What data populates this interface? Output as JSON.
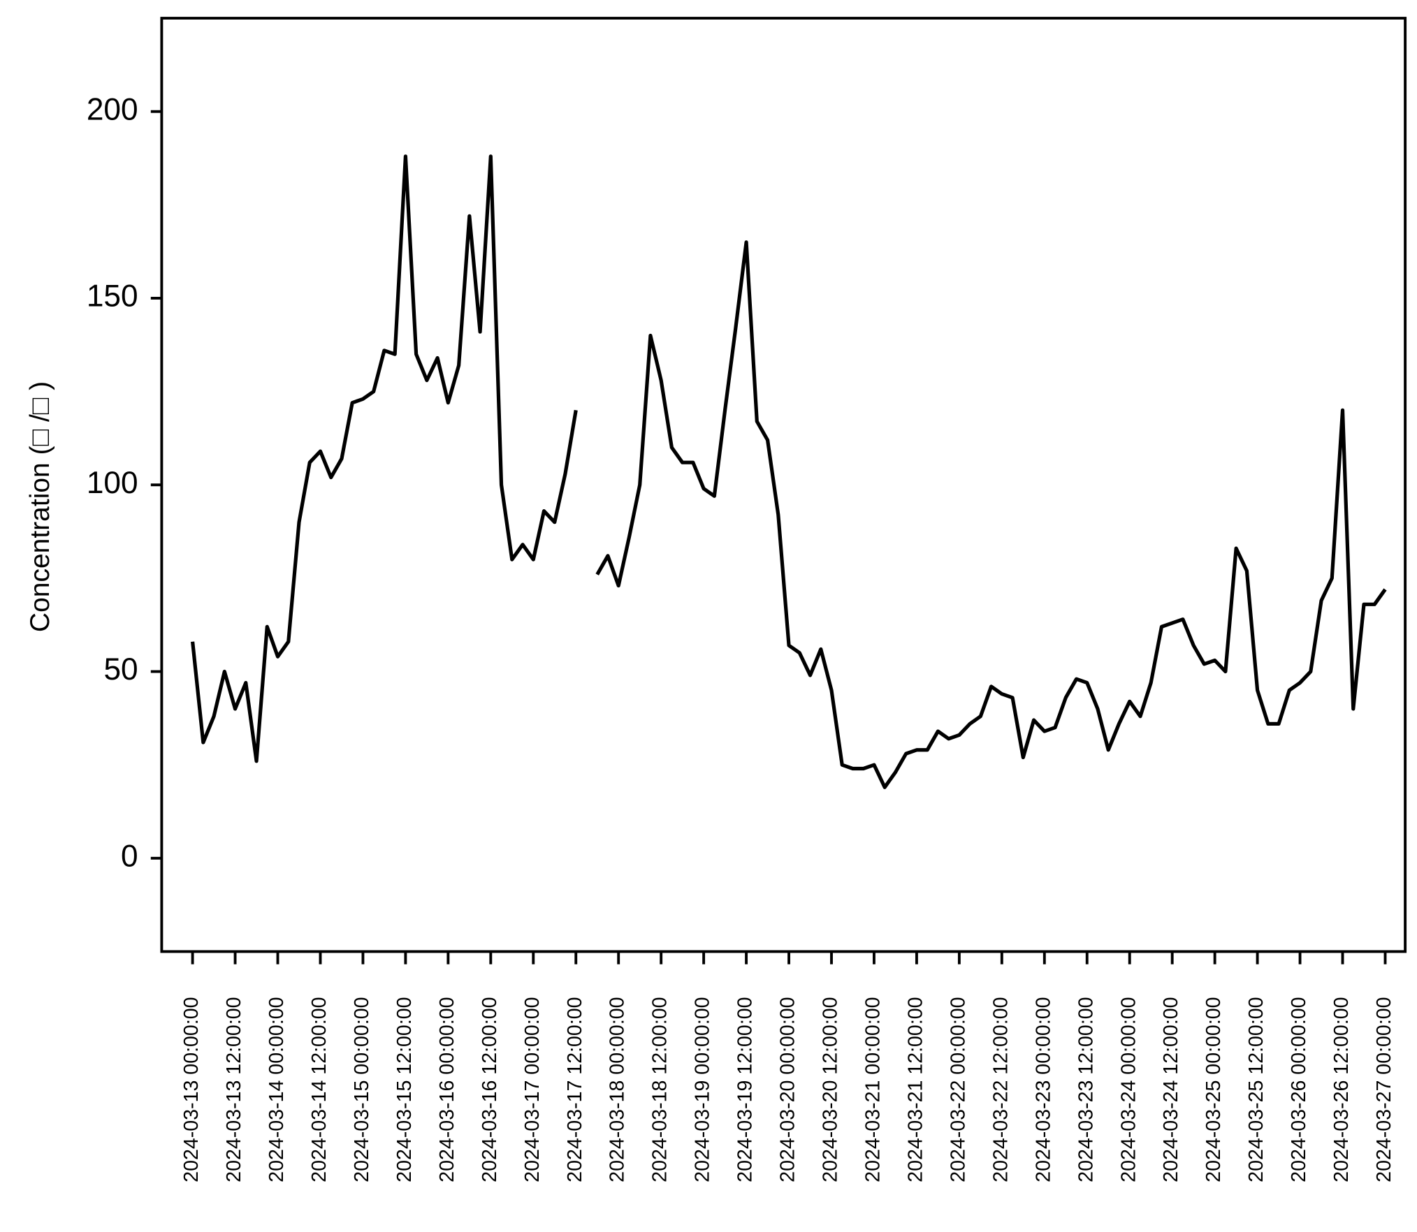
{
  "chart_data": {
    "type": "line",
    "y_label": "Concentration (□ /□ )",
    "xlim": [
      "2024-03-12 15:18:00",
      "2024-03-27 05:38:00"
    ],
    "xticks": [
      "2024-03-13 00:00:00",
      "2024-03-13 12:00:00",
      "2024-03-14 00:00:00",
      "2024-03-14 12:00:00",
      "2024-03-15 00:00:00",
      "2024-03-15 12:00:00",
      "2024-03-16 00:00:00",
      "2024-03-16 12:00:00",
      "2024-03-17 00:00:00",
      "2024-03-17 12:00:00",
      "2024-03-18 00:00:00",
      "2024-03-18 12:00:00",
      "2024-03-19 00:00:00",
      "2024-03-19 12:00:00",
      "2024-03-20 00:00:00",
      "2024-03-20 12:00:00",
      "2024-03-21 00:00:00",
      "2024-03-21 12:00:00",
      "2024-03-22 00:00:00",
      "2024-03-22 12:00:00",
      "2024-03-23 00:00:00",
      "2024-03-23 12:00:00",
      "2024-03-24 00:00:00",
      "2024-03-24 12:00:00",
      "2024-03-25 00:00:00",
      "2024-03-25 12:00:00",
      "2024-03-26 00:00:00",
      "2024-03-26 12:00:00",
      "2024-03-27 00:00:00"
    ],
    "ylim": [
      -25,
      225
    ],
    "yticks": [
      0,
      50,
      100,
      150,
      200
    ],
    "x": [
      "2024-03-13 00:00:00",
      "2024-03-13 03:00:00",
      "2024-03-13 06:00:00",
      "2024-03-13 09:00:00",
      "2024-03-13 12:00:00",
      "2024-03-13 15:00:00",
      "2024-03-13 18:00:00",
      "2024-03-13 21:00:00",
      "2024-03-14 00:00:00",
      "2024-03-14 03:00:00",
      "2024-03-14 06:00:00",
      "2024-03-14 09:00:00",
      "2024-03-14 12:00:00",
      "2024-03-14 15:00:00",
      "2024-03-14 18:00:00",
      "2024-03-14 21:00:00",
      "2024-03-15 00:00:00",
      "2024-03-15 03:00:00",
      "2024-03-15 06:00:00",
      "2024-03-15 09:00:00",
      "2024-03-15 12:00:00",
      "2024-03-15 15:00:00",
      "2024-03-15 18:00:00",
      "2024-03-15 21:00:00",
      "2024-03-16 00:00:00",
      "2024-03-16 03:00:00",
      "2024-03-16 06:00:00",
      "2024-03-16 09:00:00",
      "2024-03-16 12:00:00",
      "2024-03-16 15:00:00",
      "2024-03-16 18:00:00",
      "2024-03-16 21:00:00",
      "2024-03-17 00:00:00",
      "2024-03-17 03:00:00",
      "2024-03-17 06:00:00",
      "2024-03-17 09:00:00",
      "2024-03-17 12:00:00",
      "2024-03-17 15:00:00",
      "2024-03-17 18:00:00",
      "2024-03-17 21:00:00",
      "2024-03-18 00:00:00",
      "2024-03-18 03:00:00",
      "2024-03-18 06:00:00",
      "2024-03-18 09:00:00",
      "2024-03-18 12:00:00",
      "2024-03-18 15:00:00",
      "2024-03-18 18:00:00",
      "2024-03-18 21:00:00",
      "2024-03-19 00:00:00",
      "2024-03-19 03:00:00",
      "2024-03-19 06:00:00",
      "2024-03-19 09:00:00",
      "2024-03-19 12:00:00",
      "2024-03-19 15:00:00",
      "2024-03-19 18:00:00",
      "2024-03-19 21:00:00",
      "2024-03-20 00:00:00",
      "2024-03-20 03:00:00",
      "2024-03-20 06:00:00",
      "2024-03-20 09:00:00",
      "2024-03-20 12:00:00",
      "2024-03-20 15:00:00",
      "2024-03-20 18:00:00",
      "2024-03-20 21:00:00",
      "2024-03-21 00:00:00",
      "2024-03-21 03:00:00",
      "2024-03-21 06:00:00",
      "2024-03-21 09:00:00",
      "2024-03-21 12:00:00",
      "2024-03-21 15:00:00",
      "2024-03-21 18:00:00",
      "2024-03-21 21:00:00",
      "2024-03-22 00:00:00",
      "2024-03-22 03:00:00",
      "2024-03-22 06:00:00",
      "2024-03-22 09:00:00",
      "2024-03-22 12:00:00",
      "2024-03-22 15:00:00",
      "2024-03-22 18:00:00",
      "2024-03-22 21:00:00",
      "2024-03-23 00:00:00",
      "2024-03-23 03:00:00",
      "2024-03-23 06:00:00",
      "2024-03-23 09:00:00",
      "2024-03-23 12:00:00",
      "2024-03-23 15:00:00",
      "2024-03-23 18:00:00",
      "2024-03-23 21:00:00",
      "2024-03-24 00:00:00",
      "2024-03-24 03:00:00",
      "2024-03-24 06:00:00",
      "2024-03-24 09:00:00",
      "2024-03-24 12:00:00",
      "2024-03-24 15:00:00",
      "2024-03-24 18:00:00",
      "2024-03-24 21:00:00",
      "2024-03-25 00:00:00",
      "2024-03-25 03:00:00",
      "2024-03-25 06:00:00",
      "2024-03-25 09:00:00",
      "2024-03-25 12:00:00",
      "2024-03-25 15:00:00",
      "2024-03-25 18:00:00",
      "2024-03-25 21:00:00",
      "2024-03-26 00:00:00",
      "2024-03-26 03:00:00",
      "2024-03-26 06:00:00",
      "2024-03-26 09:00:00",
      "2024-03-26 12:00:00",
      "2024-03-26 15:00:00",
      "2024-03-26 18:00:00",
      "2024-03-26 21:00:00",
      "2024-03-27 00:00:00"
    ],
    "values": [
      58,
      31,
      38,
      50,
      40,
      47,
      26,
      62,
      54,
      58,
      90,
      106,
      109,
      102,
      107,
      122,
      123,
      125,
      136,
      135,
      188,
      135,
      128,
      134,
      122,
      132,
      172,
      141,
      188,
      100,
      80,
      84,
      80,
      93,
      90,
      103,
      120,
      null,
      76,
      81,
      73,
      86,
      100,
      140,
      128,
      110,
      106,
      106,
      99,
      97,
      120,
      142,
      165,
      117,
      112,
      92,
      57,
      55,
      49,
      56,
      45,
      25,
      24,
      24,
      25,
      19,
      23,
      28,
      29,
      29,
      34,
      32,
      33,
      36,
      38,
      46,
      44,
      43,
      27,
      37,
      34,
      35,
      43,
      48,
      47,
      40,
      29,
      36,
      42,
      38,
      47,
      62,
      63,
      64,
      57,
      52,
      53,
      50,
      83,
      77,
      45,
      36,
      36,
      45,
      47,
      50,
      69,
      75,
      120,
      40,
      68,
      68,
      72
    ],
    "color": "#000000"
  }
}
